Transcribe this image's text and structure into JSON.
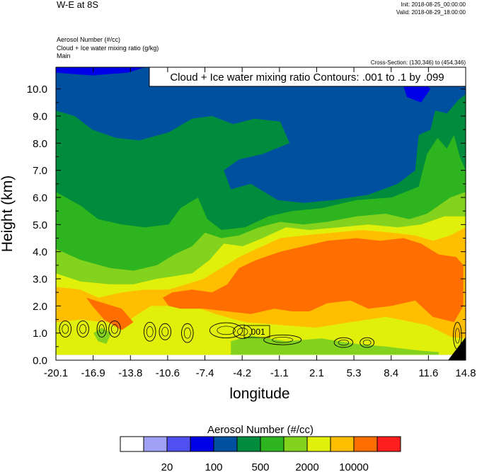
{
  "header": {
    "title": "W-E at 8S",
    "init": "Init: 2018-08-25_00:00:00",
    "valid": "Valid: 2018-08-29_18:00:00",
    "field_lines": [
      "Aerosol Number   (#/cc)",
      "Cloud + Ice water mixing ratio   (g/kg)",
      "Main"
    ],
    "cross_section": "Cross-Section: (130,346) to (454,346)"
  },
  "chart_data": {
    "type": "heatmap",
    "title": "Cloud + Ice water mixing ratio Contours: .001 to .1 by .099",
    "xlabel": "longitude",
    "ylabel": "Height (km)",
    "x_ticks": [
      "-20.1",
      "-16.9",
      "-13.8",
      "-10.6",
      "-7.4",
      "-4.2",
      "-1.1",
      "2.1",
      "5.3",
      "8.4",
      "11.6",
      "14.8"
    ],
    "xlim": [
      -20.1,
      14.8
    ],
    "y_ticks": [
      "0.0",
      "1.0",
      "2.0",
      "3.0",
      "4.0",
      "5.0",
      "6.0",
      "7.0",
      "8.0",
      "9.0",
      "10.0"
    ],
    "ylim": [
      0,
      10.8
    ],
    "contour_label": ".001",
    "colorbar": {
      "title": "Aerosol Number  (#/cc)",
      "labels": [
        "20",
        "100",
        "500",
        "2000",
        "10000"
      ],
      "colors": [
        "#ffffff",
        "#a0a0f5",
        "#5050f0",
        "#0000e6",
        "#0050a0",
        "#008c3c",
        "#2db41e",
        "#82d21e",
        "#e1f00a",
        "#ffbe00",
        "#ff6e00",
        "#ff1e1e"
      ]
    },
    "regions": [
      {
        "level": 4,
        "color": "#0050a0",
        "poly": [
          [
            -20.1,
            10.8
          ],
          [
            14.8,
            10.8
          ],
          [
            14.8,
            0.2
          ],
          [
            -20.1,
            0.2
          ]
        ]
      },
      {
        "level": 3,
        "color": "#0000e6",
        "poly": [
          [
            -20.1,
            10.8
          ],
          [
            -12.5,
            10.8
          ],
          [
            -14,
            10.6
          ],
          [
            -17,
            10.5
          ],
          [
            -20.1,
            10.6
          ]
        ]
      },
      {
        "level": 3,
        "color": "#0000e6",
        "poly": [
          [
            9.5,
            10.1
          ],
          [
            10.8,
            10.4
          ],
          [
            11.8,
            10.0
          ],
          [
            11.0,
            9.5
          ],
          [
            9.8,
            9.7
          ]
        ]
      },
      {
        "level": 5,
        "color": "#008c3c",
        "poly": [
          [
            -20.1,
            9.2
          ],
          [
            -18.5,
            9.0
          ],
          [
            -17.0,
            8.5
          ],
          [
            -15.0,
            8.2
          ],
          [
            -13.0,
            8.1
          ],
          [
            -10.5,
            8.4
          ],
          [
            -8.5,
            8.9
          ],
          [
            -6.8,
            9.0
          ],
          [
            -5.0,
            8.7
          ],
          [
            -3.2,
            8.9
          ],
          [
            -1.0,
            8.8
          ],
          [
            -0.2,
            8.0
          ],
          [
            -2.5,
            7.6
          ],
          [
            -4.5,
            7.4
          ],
          [
            -5.8,
            7.0
          ],
          [
            -5.2,
            6.3
          ],
          [
            -3.5,
            6.5
          ],
          [
            -1.2,
            5.9
          ],
          [
            1.0,
            5.8
          ],
          [
            3.5,
            5.9
          ],
          [
            6.5,
            6.1
          ],
          [
            9.0,
            6.5
          ],
          [
            10.5,
            7.0
          ],
          [
            10.8,
            8.3
          ],
          [
            11.8,
            8.5
          ],
          [
            12.2,
            9.2
          ],
          [
            13.2,
            9.1
          ],
          [
            14.2,
            9.6
          ],
          [
            14.8,
            9.8
          ],
          [
            14.8,
            0.2
          ],
          [
            -20.1,
            0.2
          ]
        ]
      },
      {
        "level": 6,
        "color": "#2db41e",
        "poly": [
          [
            -20.1,
            6.2
          ],
          [
            -18.0,
            5.7
          ],
          [
            -16.5,
            5.2
          ],
          [
            -14.5,
            5.0
          ],
          [
            -12.5,
            4.9
          ],
          [
            -10.5,
            5.0
          ],
          [
            -9.5,
            5.6
          ],
          [
            -8.0,
            6.0
          ],
          [
            -7.2,
            5.2
          ],
          [
            -6.0,
            4.8
          ],
          [
            -4.0,
            4.9
          ],
          [
            -2.0,
            5.3
          ],
          [
            0.0,
            5.5
          ],
          [
            2.5,
            5.6
          ],
          [
            5.5,
            5.9
          ],
          [
            8.5,
            6.0
          ],
          [
            10.8,
            6.4
          ],
          [
            11.5,
            7.6
          ],
          [
            12.4,
            8.2
          ],
          [
            13.2,
            7.8
          ],
          [
            13.8,
            8.3
          ],
          [
            14.3,
            7.5
          ],
          [
            14.8,
            7.0
          ],
          [
            14.8,
            0.2
          ],
          [
            -20.1,
            0.2
          ]
        ]
      },
      {
        "level": 7,
        "color": "#82d21e",
        "poly": [
          [
            -20.1,
            4.1
          ],
          [
            -18.0,
            3.7
          ],
          [
            -15.5,
            3.4
          ],
          [
            -13.5,
            3.3
          ],
          [
            -11.5,
            3.5
          ],
          [
            -10.0,
            3.9
          ],
          [
            -8.5,
            4.2
          ],
          [
            -7.4,
            4.7
          ],
          [
            -6.0,
            4.5
          ],
          [
            -4.5,
            4.6
          ],
          [
            -2.8,
            4.9
          ],
          [
            -1.0,
            5.1
          ],
          [
            1.0,
            5.0
          ],
          [
            3.0,
            5.1
          ],
          [
            5.5,
            5.3
          ],
          [
            8.0,
            5.4
          ],
          [
            10.0,
            5.2
          ],
          [
            11.5,
            5.4
          ],
          [
            13.5,
            6.0
          ],
          [
            14.8,
            6.2
          ],
          [
            14.8,
            0.2
          ],
          [
            -20.1,
            0.2
          ]
        ]
      },
      {
        "level": 8,
        "color": "#e1f00a",
        "poly": [
          [
            -20.1,
            3.2
          ],
          [
            -18.0,
            2.9
          ],
          [
            -15.5,
            2.8
          ],
          [
            -13.5,
            2.8
          ],
          [
            -11.5,
            3.0
          ],
          [
            -10.0,
            3.1
          ],
          [
            -8.5,
            3.2
          ],
          [
            -7.0,
            3.7
          ],
          [
            -5.8,
            4.3
          ],
          [
            -4.2,
            4.2
          ],
          [
            -2.5,
            4.5
          ],
          [
            -0.5,
            4.9
          ],
          [
            1.5,
            4.8
          ],
          [
            4.0,
            4.9
          ],
          [
            6.5,
            5.0
          ],
          [
            9.0,
            4.9
          ],
          [
            11.0,
            5.0
          ],
          [
            13.0,
            5.3
          ],
          [
            14.8,
            5.3
          ],
          [
            14.8,
            0.2
          ],
          [
            -20.1,
            0.2
          ]
        ]
      },
      {
        "level": 9,
        "color": "#ffbe00",
        "poly": [
          [
            -20.1,
            2.7
          ],
          [
            -18.0,
            2.6
          ],
          [
            -16.5,
            2.3
          ],
          [
            -14.5,
            2.5
          ],
          [
            -12.5,
            2.6
          ],
          [
            -10.5,
            2.6
          ],
          [
            -9.0,
            2.8
          ],
          [
            -7.5,
            3.0
          ],
          [
            -6.0,
            3.4
          ],
          [
            -4.5,
            3.8
          ],
          [
            -3.0,
            4.1
          ],
          [
            -1.0,
            4.5
          ],
          [
            1.0,
            4.6
          ],
          [
            3.5,
            4.7
          ],
          [
            6.0,
            4.8
          ],
          [
            8.5,
            4.7
          ],
          [
            10.5,
            4.6
          ],
          [
            12.0,
            4.4
          ],
          [
            13.5,
            4.6
          ],
          [
            14.8,
            4.9
          ],
          [
            14.8,
            0.6
          ],
          [
            11.5,
            1.3
          ],
          [
            8.0,
            1.6
          ],
          [
            5.0,
            1.4
          ],
          [
            2.0,
            1.2
          ],
          [
            -1.0,
            1.3
          ],
          [
            -4.0,
            1.4
          ],
          [
            -6.5,
            1.7
          ],
          [
            -8.5,
            2.0
          ],
          [
            -10.5,
            2.0
          ],
          [
            -12.0,
            2.0
          ],
          [
            -13.8,
            1.5
          ],
          [
            -16.0,
            1.4
          ],
          [
            -18.0,
            1.5
          ],
          [
            -20.1,
            1.4
          ]
        ]
      },
      {
        "level": 10,
        "color": "#ff6e00",
        "poly": [
          [
            -11.0,
            2.3
          ],
          [
            -10.2,
            2.5
          ],
          [
            -8.5,
            2.6
          ],
          [
            -6.8,
            2.5
          ],
          [
            -5.5,
            2.8
          ],
          [
            -4.5,
            3.4
          ],
          [
            -3.0,
            3.7
          ],
          [
            -1.0,
            4.0
          ],
          [
            1.0,
            4.2
          ],
          [
            3.0,
            4.4
          ],
          [
            5.5,
            4.5
          ],
          [
            7.5,
            4.4
          ],
          [
            9.5,
            4.5
          ],
          [
            11.0,
            4.3
          ],
          [
            12.5,
            3.9
          ],
          [
            14.0,
            3.8
          ],
          [
            14.6,
            3.5
          ],
          [
            14.6,
            2.0
          ],
          [
            13.8,
            1.4
          ],
          [
            12.0,
            1.6
          ],
          [
            10.5,
            2.2
          ],
          [
            8.5,
            2.0
          ],
          [
            6.5,
            1.9
          ],
          [
            5.0,
            2.2
          ],
          [
            3.0,
            2.1
          ],
          [
            1.5,
            1.8
          ],
          [
            0.0,
            1.8
          ],
          [
            -1.5,
            1.9
          ],
          [
            -3.5,
            1.7
          ],
          [
            -5.5,
            1.8
          ],
          [
            -7.5,
            1.9
          ],
          [
            -9.5,
            1.9
          ],
          [
            -10.5,
            2.0
          ]
        ]
      },
      {
        "level": 10,
        "color": "#ff6e00",
        "poly": [
          [
            -17.5,
            2.3
          ],
          [
            -16.0,
            2.1
          ],
          [
            -14.5,
            1.9
          ],
          [
            -13.5,
            1.4
          ],
          [
            -14.5,
            1.1
          ],
          [
            -16.0,
            1.5
          ],
          [
            -17.0,
            2.0
          ]
        ]
      },
      {
        "level": 8,
        "color": "#e1f00a",
        "poly": [
          [
            -20.1,
            1.35
          ],
          [
            -18.0,
            1.4
          ],
          [
            -16.0,
            1.2
          ],
          [
            -14.0,
            1.1
          ],
          [
            -12.0,
            1.4
          ],
          [
            -10.0,
            1.3
          ],
          [
            -8.0,
            1.2
          ],
          [
            -6.0,
            1.1
          ],
          [
            -4.0,
            1.0
          ],
          [
            -1.0,
            1.0
          ],
          [
            2.0,
            1.0
          ],
          [
            5.0,
            1.1
          ],
          [
            8.0,
            1.2
          ],
          [
            10.5,
            1.1
          ],
          [
            12.5,
            0.9
          ],
          [
            14.8,
            0.8
          ],
          [
            14.8,
            0.2
          ],
          [
            -20.1,
            0.2
          ]
        ]
      },
      {
        "level": 7,
        "color": "#82d21e",
        "poly": [
          [
            -5.2,
            0.2
          ],
          [
            -5.2,
            0.7
          ],
          [
            -3.5,
            0.9
          ],
          [
            -0.5,
            0.7
          ],
          [
            2.5,
            0.8
          ],
          [
            5.5,
            0.6
          ],
          [
            8.0,
            0.5
          ],
          [
            11.0,
            0.35
          ],
          [
            12.5,
            0.3
          ],
          [
            12.5,
            0.2
          ]
        ]
      },
      {
        "level": 7,
        "color": "#82d21e",
        "poly": [
          [
            -16.9,
            1.0
          ],
          [
            -16.2,
            1.2
          ],
          [
            -15.4,
            1.0
          ],
          [
            -15.8,
            0.6
          ],
          [
            -16.5,
            0.7
          ]
        ]
      },
      {
        "level": 0,
        "color": "#000000",
        "poly": [
          [
            14.8,
            0.0
          ],
          [
            14.8,
            0.85
          ],
          [
            13.3,
            0.0
          ]
        ]
      }
    ],
    "contours": [
      {
        "cx": -19.3,
        "cy": 1.15,
        "rx": 0.5,
        "ry": 0.3
      },
      {
        "cx": -17.8,
        "cy": 1.15,
        "rx": 0.5,
        "ry": 0.3
      },
      {
        "cx": -16.2,
        "cy": 1.15,
        "rx": 0.4,
        "ry": 0.3
      },
      {
        "cx": -15.1,
        "cy": 1.15,
        "rx": 0.5,
        "ry": 0.3
      },
      {
        "cx": -12.1,
        "cy": 1.05,
        "rx": 0.5,
        "ry": 0.35
      },
      {
        "cx": -10.8,
        "cy": 1.05,
        "rx": 0.5,
        "ry": 0.3
      },
      {
        "cx": -8.9,
        "cy": 1.0,
        "rx": 0.5,
        "ry": 0.35
      },
      {
        "cx": -5.6,
        "cy": 1.1,
        "rx": 1.4,
        "ry": 0.28
      },
      {
        "cx": -4.2,
        "cy": 1.05,
        "rx": 0.8,
        "ry": 0.25
      },
      {
        "cx": -0.8,
        "cy": 0.75,
        "rx": 1.6,
        "ry": 0.18
      },
      {
        "cx": 4.4,
        "cy": 0.65,
        "rx": 0.8,
        "ry": 0.18
      },
      {
        "cx": 6.4,
        "cy": 0.65,
        "rx": 0.6,
        "ry": 0.18
      },
      {
        "cx": 14.1,
        "cy": 0.9,
        "rx": 0.35,
        "ry": 0.5
      }
    ]
  }
}
